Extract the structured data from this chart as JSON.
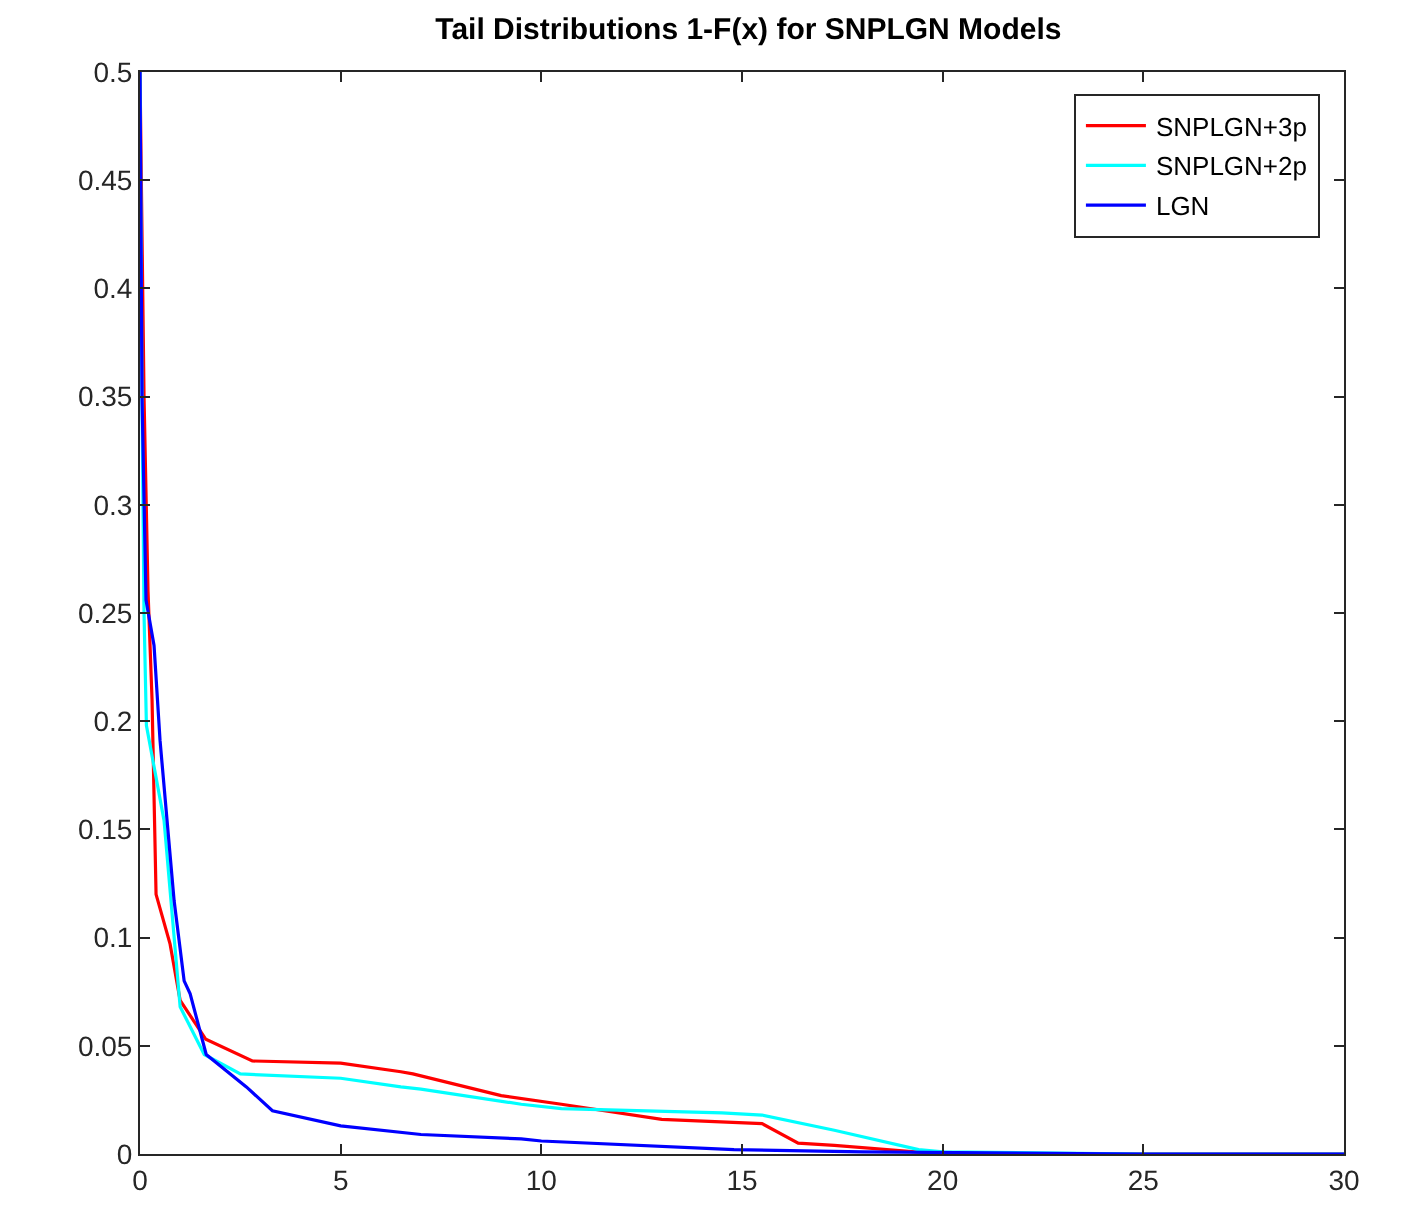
{
  "chart_data": {
    "type": "line",
    "title": "Tail Distributions 1-F(x) for SNPLGN Models",
    "xlim": [
      0,
      30
    ],
    "xticks": [
      0,
      5,
      10,
      15,
      20,
      25,
      30
    ],
    "ylim": [
      0,
      0.5
    ],
    "yticks": [
      0,
      0.05,
      0.1,
      0.15,
      0.2,
      0.25,
      0.3,
      0.35,
      0.4,
      0.45,
      0.5
    ],
    "grid": false,
    "legend": "top right",
    "line_style": "solid",
    "marker": "none",
    "series": [
      {
        "name": "SNPLGN+3p",
        "color": "#ff0000",
        "x": [
          0,
          0.1,
          0.2,
          0.3,
          0.4,
          0.75,
          1.0,
          1.64,
          2.8,
          5.0,
          6.5,
          6.8,
          9.0,
          10.5,
          13,
          15.5,
          16.4,
          17.3,
          20,
          25,
          30
        ],
        "values": [
          0.5,
          0.35,
          0.26,
          0.21,
          0.12,
          0.097,
          0.071,
          0.053,
          0.043,
          0.042,
          0.038,
          0.037,
          0.027,
          0.023,
          0.016,
          0.014,
          0.005,
          0.004,
          0,
          0,
          0
        ]
      },
      {
        "name": "SNPLGN+2p",
        "color": "#00ffff",
        "x": [
          0,
          0.05,
          0.1,
          0.16,
          0.6,
          1.0,
          1.6,
          2.5,
          5.0,
          6.5,
          7.0,
          9.5,
          10.5,
          14.5,
          15.5,
          17.3,
          19.4,
          20,
          25,
          30
        ],
        "values": [
          0.5,
          0.35,
          0.25,
          0.198,
          0.154,
          0.068,
          0.046,
          0.037,
          0.035,
          0.031,
          0.03,
          0.023,
          0.021,
          0.019,
          0.018,
          0.011,
          0.002,
          0.001,
          0,
          0
        ]
      },
      {
        "name": "LGN",
        "color": "#0000ff",
        "x": [
          0,
          0.05,
          0.15,
          0.35,
          0.5,
          0.85,
          1.1,
          1.25,
          1.65,
          2.65,
          3.3,
          5,
          7,
          9.5,
          10,
          14.8,
          18,
          25,
          30
        ],
        "values": [
          0.5,
          0.35,
          0.256,
          0.235,
          0.191,
          0.117,
          0.08,
          0.074,
          0.046,
          0.031,
          0.02,
          0.013,
          0.009,
          0.007,
          0.006,
          0.002,
          0.001,
          0,
          0
        ]
      }
    ]
  }
}
